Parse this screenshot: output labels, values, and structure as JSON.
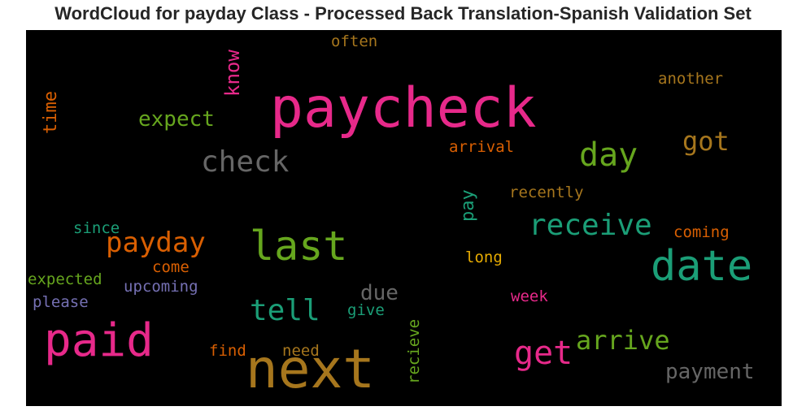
{
  "title": "WordCloud for payday Class - Processed Back Translation-Spanish Validation Set",
  "words": [
    {
      "text": "paycheck",
      "color": "#e7298a"
    },
    {
      "text": "next",
      "color": "#a6761d"
    },
    {
      "text": "date",
      "color": "#1b9e77"
    },
    {
      "text": "paid",
      "color": "#e7298a"
    },
    {
      "text": "last",
      "color": "#66a61e"
    },
    {
      "text": "check",
      "color": "#666666"
    },
    {
      "text": "get",
      "color": "#e7298a"
    },
    {
      "text": "day",
      "color": "#66a61e"
    },
    {
      "text": "receive",
      "color": "#1b9e77"
    },
    {
      "text": "payday",
      "color": "#d95f02"
    },
    {
      "text": "tell",
      "color": "#1b9e77"
    },
    {
      "text": "know",
      "color": "#e7298a"
    },
    {
      "text": "got",
      "color": "#a6761d"
    },
    {
      "text": "arrive",
      "color": "#66a61e"
    },
    {
      "text": "payment",
      "color": "#666666"
    },
    {
      "text": "expect",
      "color": "#66a61e"
    },
    {
      "text": "time",
      "color": "#d95f02"
    },
    {
      "text": "due",
      "color": "#666666"
    },
    {
      "text": "pay",
      "color": "#1b9e77"
    },
    {
      "text": "another",
      "color": "#a6761d"
    },
    {
      "text": "often",
      "color": "#a6761d"
    },
    {
      "text": "arrival",
      "color": "#d95f02"
    },
    {
      "text": "recently",
      "color": "#a6761d"
    },
    {
      "text": "since",
      "color": "#1b9e77"
    },
    {
      "text": "coming",
      "color": "#d95f02"
    },
    {
      "text": "come",
      "color": "#d95f02"
    },
    {
      "text": "long",
      "color": "#e6ab02"
    },
    {
      "text": "expected",
      "color": "#66a61e"
    },
    {
      "text": "upcoming",
      "color": "#7570b3"
    },
    {
      "text": "please",
      "color": "#7570b3"
    },
    {
      "text": "week",
      "color": "#e7298a"
    },
    {
      "text": "give",
      "color": "#1b9e77"
    },
    {
      "text": "find",
      "color": "#d95f02"
    },
    {
      "text": "need",
      "color": "#a6761d"
    },
    {
      "text": "recieve",
      "color": "#66a61e"
    }
  ]
}
